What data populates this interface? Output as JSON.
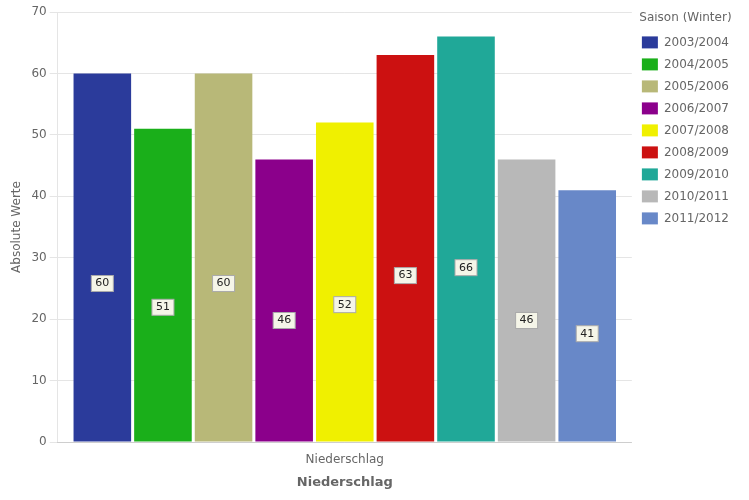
{
  "chart_data": {
    "type": "bar",
    "xlabel": "Niederschlag",
    "ylabel": "Absolute Werte",
    "categories": [
      "Niederschlag"
    ],
    "series": [
      {
        "name": "2003/2004",
        "color": "#2B3B9B",
        "values": [
          60
        ]
      },
      {
        "name": "2004/2005",
        "color": "#1AAF1A",
        "values": [
          51
        ]
      },
      {
        "name": "2005/2006",
        "color": "#B8B878",
        "values": [
          60
        ]
      },
      {
        "name": "2006/2007",
        "color": "#8B008B",
        "values": [
          46
        ]
      },
      {
        "name": "2007/2008",
        "color": "#F0F000",
        "values": [
          52
        ]
      },
      {
        "name": "2008/2009",
        "color": "#CC1111",
        "values": [
          63
        ]
      },
      {
        "name": "2009/2010",
        "color": "#20A898",
        "values": [
          66
        ]
      },
      {
        "name": "2010/2011",
        "color": "#B8B8B8",
        "values": [
          46
        ]
      },
      {
        "name": "2011/2012",
        "color": "#6888C8",
        "values": [
          41
        ]
      }
    ],
    "legend_title": "Saison (Winter)",
    "legend": "right",
    "ylim": [
      0,
      70
    ],
    "yticks": [
      0,
      10,
      20,
      30,
      40,
      50,
      60,
      70
    ],
    "grid": true,
    "data_labels": true
  }
}
